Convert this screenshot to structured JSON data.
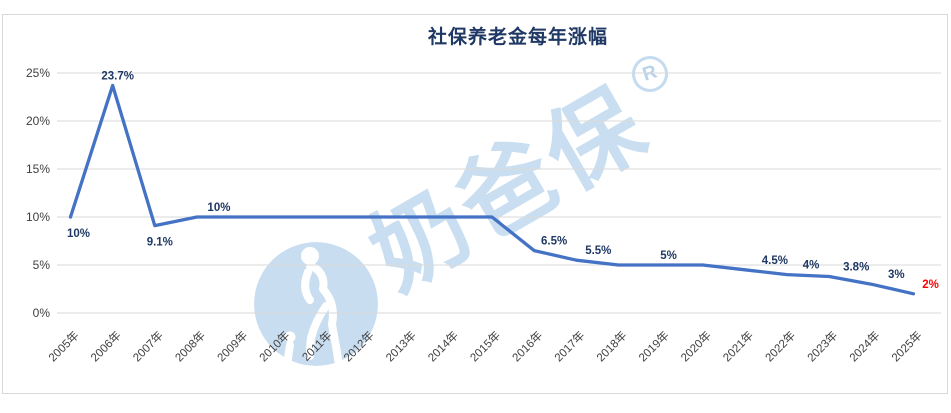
{
  "colors": {
    "line": "#4472C4",
    "data_label": "#1F3864",
    "highlight_label": "#FF0000",
    "title": "#1F3864",
    "grid": "#D9D9D9",
    "border": "#D9D9D9",
    "axis_text": "#404040",
    "watermark_blue": "#9DC3E6"
  },
  "watermark": {
    "text": "奶爸保",
    "registered": "R",
    "figure": "dad-with-child-silhouette"
  },
  "chart_data": {
    "type": "line",
    "title": "社保养老金每年涨幅",
    "xlabel": "",
    "ylabel": "",
    "categories": [
      "2005年",
      "2006年",
      "2007年",
      "2008年",
      "2009年",
      "2010年",
      "2011年",
      "2012年",
      "2013年",
      "2014年",
      "2015年",
      "2016年",
      "2017年",
      "2018年",
      "2019年",
      "2020年",
      "2021年",
      "2022年",
      "2023年",
      "2024年",
      "2025年"
    ],
    "values": [
      10,
      23.7,
      9.1,
      10,
      10,
      10,
      10,
      10,
      10,
      10,
      10,
      6.5,
      5.5,
      5,
      5,
      5,
      4.5,
      4,
      3.8,
      3,
      2
    ],
    "ylim": [
      0,
      25
    ],
    "ytick_step": 5,
    "yticks": [
      "0%",
      "5%",
      "10%",
      "15%",
      "20%",
      "25%"
    ],
    "grid": "horizontal",
    "legend": "none",
    "x_tick_rotation": -45,
    "data_labels": [
      {
        "category": "2005年",
        "text": "10%",
        "pos": "below",
        "dx": 8
      },
      {
        "category": "2006年",
        "text": "23.7%",
        "pos": "above",
        "dx": 5
      },
      {
        "category": "2007年",
        "text": "9.1%",
        "pos": "below",
        "dx": 5
      },
      {
        "category": "2008年",
        "text": "10%",
        "pos": "above",
        "dx": 22
      },
      {
        "category": "2016年",
        "text": "6.5%",
        "pos": "above",
        "dx": 20
      },
      {
        "category": "2017年",
        "text": "5.5%",
        "pos": "above",
        "dx": 22
      },
      {
        "category": "2019年",
        "text": "5%",
        "pos": "above",
        "dx": 8
      },
      {
        "category": "2021年",
        "text": "4.5%",
        "pos": "above",
        "dx": 30
      },
      {
        "category": "2022年",
        "text": "4%",
        "pos": "above",
        "dx": 24
      },
      {
        "category": "2023年",
        "text": "3.8%",
        "pos": "above",
        "dx": 27
      },
      {
        "category": "2024年",
        "text": "3%",
        "pos": "above",
        "dx": 25
      },
      {
        "category": "2025年",
        "text": "2%",
        "pos": "above",
        "dx": 17,
        "color": "#FF0000"
      }
    ]
  }
}
